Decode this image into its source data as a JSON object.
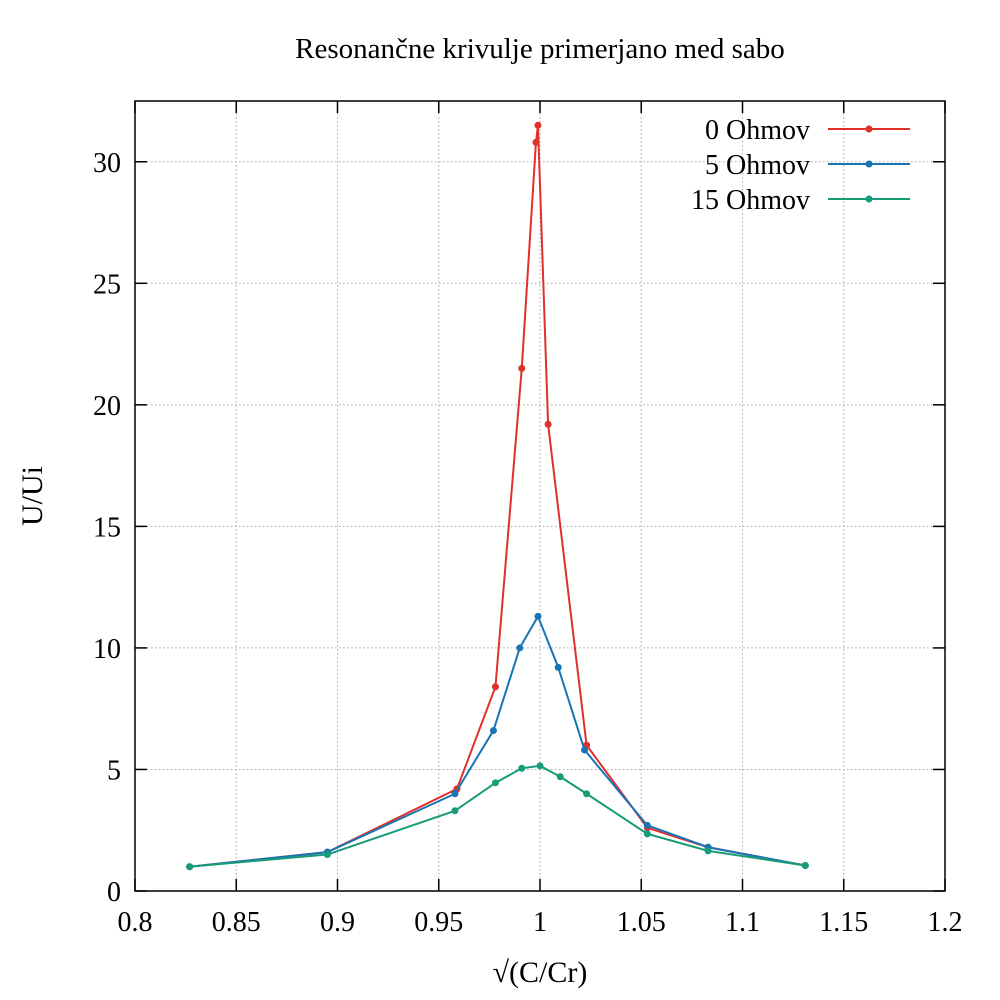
{
  "chart_data": {
    "type": "line",
    "title": "Resonančne krivulje primerjano med sabo",
    "xlabel": "√(C/Cr)",
    "ylabel": "U/Ui",
    "xlim": [
      0.8,
      1.2
    ],
    "ylim": [
      0,
      32.5
    ],
    "xticks": [
      0.8,
      0.85,
      0.9,
      0.95,
      1,
      1.05,
      1.1,
      1.15,
      1.2
    ],
    "xtick_labels": [
      "0.8",
      "0.85",
      "0.9",
      "0.95",
      "1",
      "1.05",
      "1.1",
      "1.15",
      "1.2"
    ],
    "yticks": [
      0,
      5,
      10,
      15,
      20,
      25,
      30
    ],
    "ytick_labels": [
      "0",
      "5",
      "10",
      "15",
      "20",
      "25",
      "30"
    ],
    "grid": true,
    "legend_position": "top-right",
    "series": [
      {
        "name": "0 Ohmov",
        "color": "#e0302a",
        "points": [
          [
            0.827,
            1.0
          ],
          [
            0.895,
            1.6
          ],
          [
            0.959,
            4.2
          ],
          [
            0.978,
            8.4
          ],
          [
            0.991,
            21.5
          ],
          [
            0.998,
            30.8
          ],
          [
            0.999,
            31.5
          ],
          [
            1.004,
            19.2
          ],
          [
            1.023,
            6.0
          ],
          [
            1.053,
            2.6
          ],
          [
            1.083,
            1.8
          ],
          [
            1.131,
            1.05
          ]
        ]
      },
      {
        "name": "5 Ohmov",
        "color": "#1874b4",
        "points": [
          [
            0.827,
            1.0
          ],
          [
            0.895,
            1.6
          ],
          [
            0.958,
            4.0
          ],
          [
            0.977,
            6.6
          ],
          [
            0.99,
            10.0
          ],
          [
            0.999,
            11.3
          ],
          [
            1.009,
            9.2
          ],
          [
            1.022,
            5.8
          ],
          [
            1.053,
            2.7
          ],
          [
            1.083,
            1.8
          ],
          [
            1.131,
            1.05
          ]
        ]
      },
      {
        "name": "15 Ohmov",
        "color": "#189c78",
        "points": [
          [
            0.827,
            1.0
          ],
          [
            0.895,
            1.5
          ],
          [
            0.958,
            3.3
          ],
          [
            0.978,
            4.45
          ],
          [
            0.991,
            5.05
          ],
          [
            1.0,
            5.15
          ],
          [
            1.01,
            4.7
          ],
          [
            1.023,
            4.0
          ],
          [
            1.053,
            2.35
          ],
          [
            1.083,
            1.65
          ],
          [
            1.131,
            1.05
          ]
        ]
      }
    ]
  }
}
